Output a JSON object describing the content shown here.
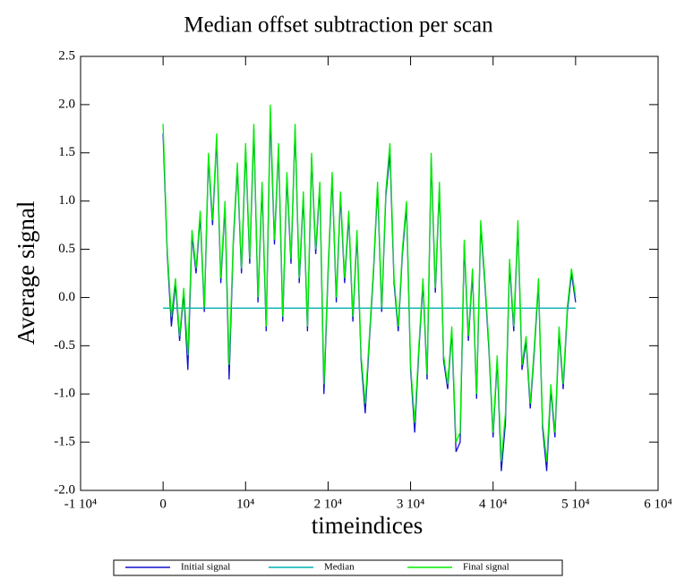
{
  "chart_data": {
    "type": "line",
    "title": "Median offset subtraction per scan",
    "xlabel": "timeindices",
    "ylabel": "Average signal",
    "x": [
      0,
      500,
      1000,
      1500,
      2000,
      2500,
      3000,
      3500,
      4000,
      4500,
      5000,
      5500,
      6000,
      6500,
      7000,
      7500,
      8000,
      8500,
      9000,
      9500,
      10000,
      10500,
      11000,
      11500,
      12000,
      12500,
      13000,
      13500,
      14000,
      14500,
      15000,
      15500,
      16000,
      16500,
      17000,
      17500,
      18000,
      18500,
      19000,
      19500,
      20000,
      20500,
      21000,
      21500,
      22000,
      22500,
      23000,
      23500,
      24000,
      24500,
      25000,
      25500,
      26000,
      26500,
      27000,
      27500,
      28000,
      28500,
      29000,
      29500,
      30000,
      30500,
      31000,
      31500,
      32000,
      32500,
      33000,
      33500,
      34000,
      34500,
      35000,
      35500,
      36000,
      36500,
      37000,
      37500,
      38000,
      38500,
      39000,
      39500,
      40000,
      40500,
      41000,
      41500,
      42000,
      42500,
      43000,
      43500,
      44000,
      44500,
      45000,
      45500,
      46000,
      46500,
      47000,
      47500,
      48000,
      48500,
      49000,
      49500,
      50000
    ],
    "series": [
      {
        "name": "Initial signal",
        "color": "#1010d0",
        "values": [
          1.7,
          0.45,
          -0.3,
          0.15,
          -0.45,
          0.05,
          -0.75,
          0.65,
          0.25,
          0.85,
          -0.15,
          1.45,
          0.75,
          1.65,
          0.15,
          0.95,
          -0.85,
          0.55,
          1.35,
          0.25,
          1.55,
          0.35,
          1.75,
          -0.05,
          1.15,
          -0.35,
          1.9,
          0.55,
          1.55,
          -0.25,
          1.25,
          0.35,
          1.75,
          0.15,
          1.05,
          -0.35,
          1.45,
          0.45,
          1.15,
          -1.0,
          0.25,
          1.25,
          -0.05,
          1.05,
          0.15,
          0.85,
          -0.25,
          0.65,
          -0.65,
          -1.2,
          -0.45,
          0.25,
          1.15,
          -0.15,
          1.05,
          1.5,
          0.15,
          -0.35,
          0.45,
          0.95,
          -0.75,
          -1.4,
          -0.55,
          0.15,
          -0.85,
          1.45,
          0.05,
          1.15,
          -0.65,
          -0.95,
          -0.35,
          -1.6,
          -1.5,
          0.55,
          -0.45,
          0.25,
          -1.05,
          0.75,
          0.15,
          -0.55,
          -1.45,
          -0.65,
          -1.8,
          -1.3,
          0.35,
          -0.35,
          0.75,
          -0.75,
          -0.45,
          -1.15,
          -0.55,
          0.15,
          -1.35,
          -1.8,
          -0.95,
          -1.45,
          -0.35,
          -0.95,
          -0.15,
          0.25,
          -0.05
        ]
      },
      {
        "name": "Median",
        "color": "#00b0b0",
        "x": [
          0,
          50000
        ],
        "values": [
          -0.11,
          -0.11
        ]
      },
      {
        "name": "Final signal",
        "color": "#00ee00",
        "values": [
          1.8,
          0.5,
          -0.2,
          0.2,
          -0.4,
          0.1,
          -0.6,
          0.7,
          0.3,
          0.9,
          -0.1,
          1.5,
          0.8,
          1.7,
          0.2,
          1.0,
          -0.7,
          0.6,
          1.4,
          0.3,
          1.6,
          0.4,
          1.8,
          0.0,
          1.2,
          -0.3,
          2.0,
          0.6,
          1.6,
          -0.2,
          1.3,
          0.4,
          1.8,
          0.2,
          1.1,
          -0.3,
          1.5,
          0.5,
          1.2,
          -0.9,
          0.3,
          1.3,
          0.0,
          1.1,
          0.2,
          0.9,
          -0.2,
          0.7,
          -0.6,
          -1.1,
          -0.4,
          0.3,
          1.2,
          -0.1,
          1.1,
          1.6,
          0.2,
          -0.3,
          0.5,
          1.0,
          -0.7,
          -1.3,
          -0.5,
          0.2,
          -0.8,
          1.5,
          0.1,
          1.2,
          -0.6,
          -0.9,
          -0.3,
          -1.5,
          -1.4,
          0.6,
          -0.4,
          0.3,
          -1.0,
          0.8,
          0.2,
          -0.5,
          -1.4,
          -0.6,
          -1.7,
          -1.2,
          0.4,
          -0.3,
          0.8,
          -0.7,
          -0.4,
          -1.1,
          -0.5,
          0.2,
          -1.3,
          -1.7,
          -0.9,
          -1.4,
          -0.3,
          -0.9,
          -0.1,
          0.3,
          0.0
        ]
      }
    ],
    "xlim": [
      -10000,
      60000
    ],
    "xticks": [
      {
        "value": -10000,
        "label": "-1 10⁴"
      },
      0,
      {
        "value": 10000,
        "label": "10⁴"
      },
      {
        "value": 20000,
        "label": "2 10⁴"
      },
      {
        "value": 30000,
        "label": "3 10⁴"
      },
      {
        "value": 40000,
        "label": "4 10⁴"
      },
      {
        "value": 50000,
        "label": "5 10⁴"
      },
      {
        "value": 60000,
        "label": "6 10⁴"
      }
    ],
    "ylim": [
      -2.0,
      2.5
    ],
    "yticks": [
      {
        "value": -2,
        "label": "-2.0"
      },
      -1.5,
      {
        "value": -1,
        "label": "-1.0"
      },
      -0.5,
      {
        "value": 0,
        "label": "0.0"
      },
      0.5,
      {
        "value": 1,
        "label": "1.0"
      },
      1.5,
      {
        "value": 2,
        "label": "2.0"
      },
      2.5
    ],
    "legend": "bottom"
  }
}
